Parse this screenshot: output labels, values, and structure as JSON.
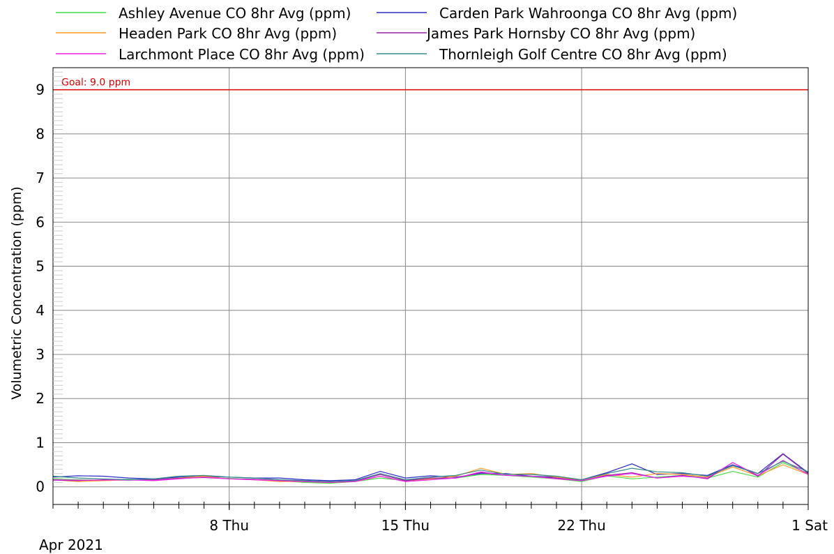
{
  "chart_data": {
    "type": "line",
    "ylabel": "Volumetric Concentration (ppm)",
    "ylim": [
      -0.4,
      9.5
    ],
    "yticks": [
      "0",
      "1",
      "2",
      "3",
      "4",
      "5",
      "6",
      "7",
      "8",
      "9"
    ],
    "xlim": [
      "2021-04-01",
      "2021-05-01"
    ],
    "xticks": [
      {
        "date": "2021-04-08",
        "label": "8 Thu"
      },
      {
        "date": "2021-04-15",
        "label": "15 Thu"
      },
      {
        "date": "2021-04-22",
        "label": "22 Thu"
      },
      {
        "date": "2021-05-01",
        "label": "1 Sat"
      }
    ],
    "month_label": "Apr 2021",
    "grid": true,
    "legend_position": "top",
    "goal": {
      "value": 9.0,
      "label": "Goal: 9.0 ppm",
      "color": "#e00000"
    },
    "x": [
      "2021-04-01",
      "2021-04-02",
      "2021-04-03",
      "2021-04-04",
      "2021-04-05",
      "2021-04-06",
      "2021-04-07",
      "2021-04-08",
      "2021-04-09",
      "2021-04-10",
      "2021-04-11",
      "2021-04-12",
      "2021-04-13",
      "2021-04-14",
      "2021-04-15",
      "2021-04-16",
      "2021-04-17",
      "2021-04-18",
      "2021-04-19",
      "2021-04-20",
      "2021-04-21",
      "2021-04-22",
      "2021-04-23",
      "2021-04-24",
      "2021-04-25",
      "2021-04-26",
      "2021-04-27",
      "2021-04-28",
      "2021-04-29",
      "2021-04-30",
      "2021-05-01"
    ],
    "series": [
      {
        "name": "Ashley Avenue CO 8hr Avg (ppm)",
        "color": "#44dd44",
        "values": [
          0.18,
          0.16,
          0.15,
          0.17,
          0.16,
          0.2,
          0.22,
          0.19,
          0.17,
          0.14,
          0.1,
          0.08,
          0.12,
          0.2,
          0.14,
          0.18,
          0.2,
          0.28,
          0.26,
          0.22,
          0.18,
          0.12,
          0.25,
          0.18,
          0.22,
          0.26,
          0.2,
          0.35,
          0.22,
          0.55,
          0.3
        ]
      },
      {
        "name": "Carden Park Wahroonga CO 8hr Avg (ppm)",
        "color": "#2a2acc",
        "values": [
          0.22,
          0.25,
          0.24,
          0.2,
          0.18,
          0.22,
          0.24,
          0.22,
          0.2,
          0.2,
          0.16,
          0.14,
          0.16,
          0.35,
          0.2,
          0.25,
          0.22,
          0.3,
          0.3,
          0.24,
          0.22,
          0.16,
          0.32,
          0.52,
          0.28,
          0.3,
          0.26,
          0.5,
          0.3,
          0.75,
          0.32
        ]
      },
      {
        "name": "Headen Park CO 8hr Avg (ppm)",
        "color": "#ff9922",
        "values": [
          0.16,
          0.12,
          0.14,
          0.16,
          0.15,
          0.2,
          0.24,
          0.18,
          0.16,
          0.12,
          0.12,
          0.1,
          0.12,
          0.24,
          0.12,
          0.18,
          0.24,
          0.42,
          0.28,
          0.3,
          0.22,
          0.16,
          0.28,
          0.22,
          0.3,
          0.28,
          0.22,
          0.45,
          0.25,
          0.5,
          0.28
        ]
      },
      {
        "name": "James Park Hornsby CO 8hr Avg (ppm)",
        "color": "#9922aa",
        "values": [
          0.15,
          0.14,
          0.16,
          0.15,
          0.16,
          0.19,
          0.21,
          0.18,
          0.17,
          0.14,
          0.12,
          0.1,
          0.13,
          0.28,
          0.14,
          0.2,
          0.2,
          0.32,
          0.26,
          0.24,
          0.2,
          0.14,
          0.26,
          0.32,
          0.2,
          0.26,
          0.18,
          0.55,
          0.24,
          0.74,
          0.3
        ]
      },
      {
        "name": "Larchmont Place CO 8hr Avg (ppm)",
        "color": "#ee22ee",
        "values": [
          0.16,
          0.15,
          0.15,
          0.16,
          0.14,
          0.18,
          0.22,
          0.18,
          0.16,
          0.14,
          0.12,
          0.1,
          0.12,
          0.24,
          0.12,
          0.16,
          0.2,
          0.34,
          0.26,
          0.24,
          0.18,
          0.14,
          0.24,
          0.3,
          0.2,
          0.24,
          0.2,
          0.55,
          0.26,
          0.6,
          0.28
        ]
      },
      {
        "name": "Thornleigh Golf Centre CO 8hr Avg (ppm)",
        "color": "#338888",
        "values": [
          0.24,
          0.2,
          0.18,
          0.16,
          0.18,
          0.24,
          0.26,
          0.22,
          0.2,
          0.16,
          0.14,
          0.12,
          0.14,
          0.3,
          0.16,
          0.22,
          0.26,
          0.38,
          0.28,
          0.28,
          0.24,
          0.16,
          0.3,
          0.42,
          0.34,
          0.32,
          0.24,
          0.48,
          0.3,
          0.58,
          0.34
        ]
      }
    ]
  }
}
